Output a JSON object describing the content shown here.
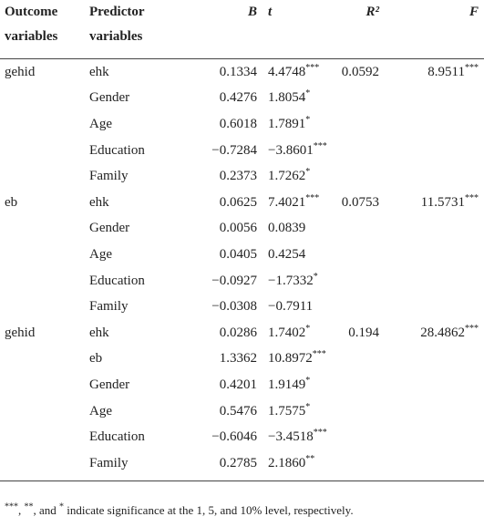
{
  "table": {
    "header": [
      "Outcome variables",
      "Predictor variables",
      "B",
      "t",
      "R²",
      "F"
    ],
    "rows": [
      [
        "gehid",
        "ehk",
        "0.1334",
        {
          "value": "4.4748",
          "sig": "***"
        },
        "0.0592",
        {
          "value": "8.9511",
          "sig": "***"
        }
      ],
      [
        "",
        "Gender",
        "0.4276",
        {
          "value": "1.8054",
          "sig": "*"
        },
        "",
        ""
      ],
      [
        "",
        "Age",
        "0.6018",
        {
          "value": "1.7891",
          "sig": "*"
        },
        "",
        ""
      ],
      [
        "",
        "Education",
        "−0.7284",
        {
          "value": "−3.8601",
          "sig": "***"
        },
        "",
        ""
      ],
      [
        "",
        "Family",
        "0.2373",
        {
          "value": "1.7262",
          "sig": "*"
        },
        "",
        ""
      ],
      [
        "eb",
        "ehk",
        "0.0625",
        {
          "value": "7.4021",
          "sig": "***"
        },
        "0.0753",
        {
          "value": "11.5731",
          "sig": "***"
        }
      ],
      [
        "",
        "Gender",
        "0.0056",
        {
          "value": "0.0839",
          "sig": ""
        },
        "",
        ""
      ],
      [
        "",
        "Age",
        "0.0405",
        {
          "value": "0.4254",
          "sig": ""
        },
        "",
        ""
      ],
      [
        "",
        "Education",
        "−0.0927",
        {
          "value": "−1.7332",
          "sig": "*"
        },
        "",
        ""
      ],
      [
        "",
        "Family",
        "−0.0308",
        {
          "value": "−0.7911",
          "sig": ""
        },
        "",
        ""
      ],
      [
        "gehid",
        "ehk",
        "0.0286",
        {
          "value": "1.7402",
          "sig": "*"
        },
        "0.194",
        {
          "value": "28.4862",
          "sig": "***"
        }
      ],
      [
        "",
        "eb",
        "1.3362",
        {
          "value": "10.8972",
          "sig": "***"
        },
        "",
        ""
      ],
      [
        "",
        "Gender",
        "0.4201",
        {
          "value": "1.9149",
          "sig": "*"
        },
        "",
        ""
      ],
      [
        "",
        "Age",
        "0.5476",
        {
          "value": "1.7575",
          "sig": "*"
        },
        "",
        ""
      ],
      [
        "",
        "Education",
        "−0.6046",
        {
          "value": "−3.4518",
          "sig": "***"
        },
        "",
        ""
      ],
      [
        "",
        "Family",
        "0.2785",
        {
          "value": "2.1860",
          "sig": "**"
        },
        "",
        ""
      ]
    ]
  },
  "footnote": {
    "marks": [
      "***",
      "**",
      "*"
    ],
    "parts": [
      ", ",
      ", and ",
      " indicate significance at the 1, 5, and 10% level, respectively."
    ]
  }
}
